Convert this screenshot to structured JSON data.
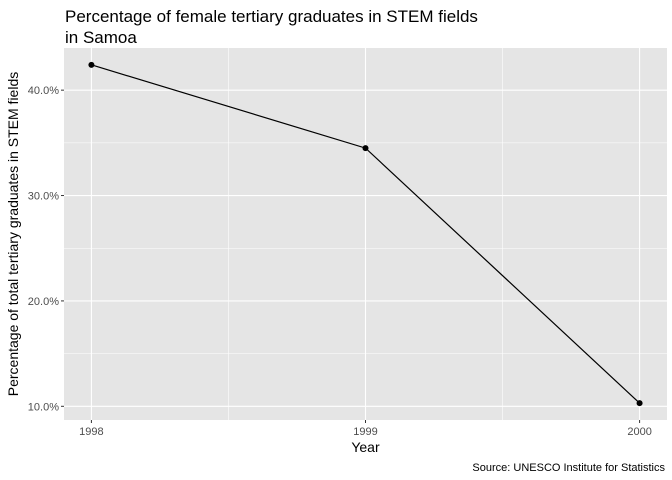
{
  "chart_data": {
    "type": "line",
    "title_line1": "Percentage of female tertiary graduates in STEM fields",
    "title_line2": "in Samoa",
    "xlabel": "Year",
    "ylabel": "Percentage of total tertiary graduates in STEM fields",
    "caption": "Source: UNESCO Institute for Statistics",
    "x": [
      1998,
      1999,
      2000
    ],
    "x_tick_labels": [
      "1998",
      "1999",
      "2000"
    ],
    "y": [
      42.4,
      34.5,
      10.3
    ],
    "y_ticks": [
      10,
      20,
      30,
      40
    ],
    "y_tick_labels": [
      "10.0%",
      "20.0%",
      "30.0%",
      "40.0%"
    ],
    "xlim": [
      1997.9,
      2000.1
    ],
    "ylim": [
      8.7,
      44.0
    ],
    "grid": true,
    "colors": {
      "panel": "#e5e5e5",
      "grid": "#ffffff",
      "line": "#000000",
      "point": "#000000"
    }
  }
}
